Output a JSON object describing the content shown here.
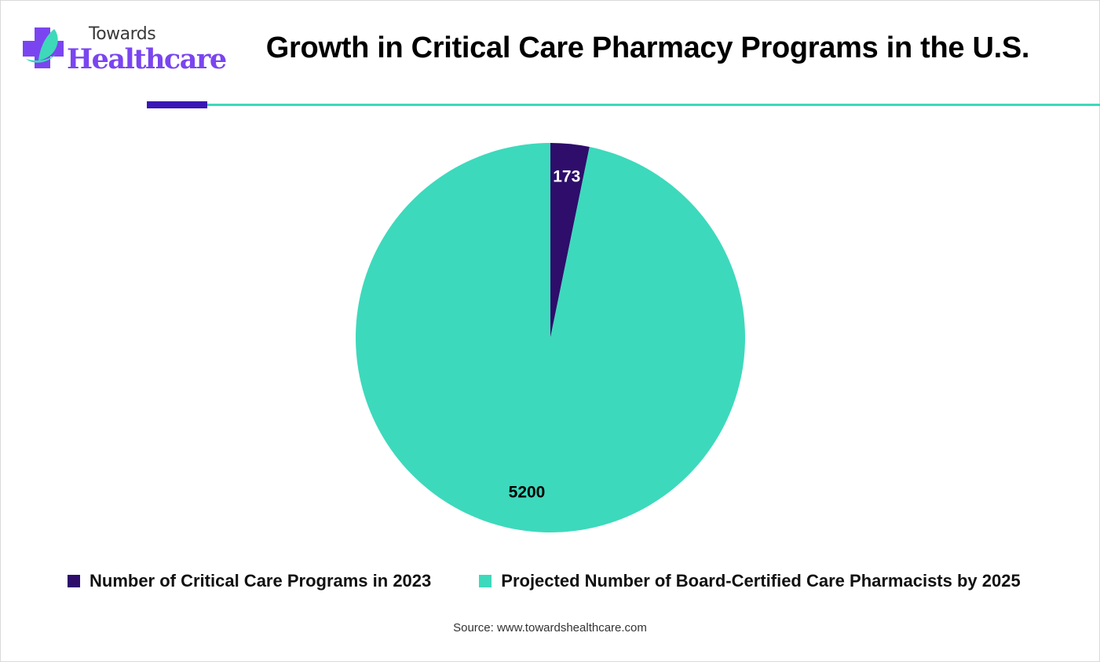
{
  "brand": {
    "line1": "Towards",
    "line2": "Healthcare",
    "icon": "plus-leaf-logo-icon",
    "colors": {
      "primary": "#7a45f0",
      "accent": "#3dd9b9",
      "text": "#3a3a3a"
    }
  },
  "header": {
    "title": "Growth in Critical Care Pharmacy Programs in the U.S.",
    "divider_colors": {
      "dark": "#3a17b5",
      "teal": "#3dd9b9"
    }
  },
  "chart_data": {
    "type": "pie",
    "title": "Growth in Critical Care Pharmacy Programs in the U.S.",
    "slices": [
      {
        "label": "Number of Critical Care Programs in 2023",
        "value": 173,
        "color": "#2e0d6b",
        "label_color": "#ffffff"
      },
      {
        "label": "Projected Number of Board-Certified Care Pharmacists by 2025",
        "value": 5200,
        "color": "#3dd9bc",
        "label_color": "#000000"
      }
    ],
    "start_angle": "12 o'clock",
    "direction": "clockwise",
    "legend_position": "bottom"
  },
  "footer": {
    "source": "Source: www.towardshealthcare.com"
  }
}
